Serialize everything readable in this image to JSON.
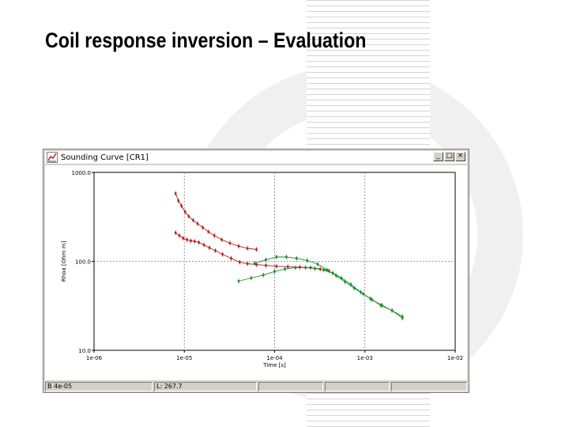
{
  "slide": {
    "title": "Coil response inversion – Evaluation"
  },
  "window": {
    "title": "Sounding Curve   [CR1]",
    "buttons": {
      "minimize": "_",
      "maximize": "□",
      "close": "×"
    }
  },
  "statusbar": {
    "left": "B  4e-05",
    "middle": "L: 267.7"
  },
  "colors": {
    "red_series": "#b02020",
    "green_series": "#1a8a2a",
    "grid": "#808080"
  },
  "chart_data": {
    "type": "scatter",
    "xscale": "log",
    "yscale": "log",
    "xlim": [
      1e-06,
      0.01
    ],
    "ylim": [
      10,
      1000
    ],
    "x_tick_labels": [
      "1e-06",
      "1e-05",
      "1e-04",
      "1e-03",
      "1e-02"
    ],
    "y_tick_labels": [
      "1000.0",
      "100.0",
      "10.0"
    ],
    "xlabel": "Time [s]",
    "ylabel": "Rhoa [Ohm m]",
    "grid": true,
    "series": [
      {
        "points": [
          [
            8e-06,
            580
          ],
          [
            8.6e-06,
            480
          ],
          [
            9.3e-06,
            420
          ],
          [
            1.02e-05,
            360
          ],
          [
            1.12e-05,
            320
          ],
          [
            1.25e-05,
            290
          ],
          [
            1.4e-05,
            265
          ],
          [
            1.6e-05,
            240
          ],
          [
            1.85e-05,
            215
          ],
          [
            2.15e-05,
            195
          ],
          [
            2.6e-05,
            175
          ],
          [
            3.2e-05,
            160
          ],
          [
            4e-05,
            148
          ],
          [
            5e-05,
            140
          ],
          [
            6.3e-05,
            136
          ]
        ],
        "color": "#b02020"
      },
      {
        "points": [
          [
            8e-06,
            210
          ],
          [
            8.8e-06,
            195
          ],
          [
            9.7e-06,
            182
          ],
          [
            1.07e-05,
            175
          ],
          [
            1.18e-05,
            170
          ],
          [
            1.3e-05,
            168
          ],
          [
            1.45e-05,
            163
          ],
          [
            1.65e-05,
            153
          ],
          [
            1.9e-05,
            142
          ],
          [
            2.2e-05,
            132
          ],
          [
            2.65e-05,
            120
          ],
          [
            3.3e-05,
            108
          ],
          [
            4.1e-05,
            98
          ],
          [
            5e-05,
            94
          ],
          [
            6.3e-05,
            92
          ],
          [
            8e-05,
            90
          ],
          [
            0.000105,
            88
          ],
          [
            0.00014,
            87
          ],
          [
            0.00019,
            86
          ],
          [
            0.00025,
            85
          ],
          [
            0.00032,
            82
          ],
          [
            0.0004,
            78
          ]
        ],
        "color": "#b02020"
      },
      {
        "points": [
          [
            4e-05,
            60
          ],
          [
            5.5e-05,
            65
          ],
          [
            7.5e-05,
            70
          ],
          [
            0.0001,
            77
          ],
          [
            0.00013,
            82
          ],
          [
            0.00017,
            85
          ],
          [
            0.00022,
            85
          ],
          [
            0.00028,
            83
          ],
          [
            0.00035,
            80
          ],
          [
            0.00044,
            74
          ],
          [
            0.00055,
            65
          ],
          [
            0.0007,
            55
          ],
          [
            0.0009,
            45
          ],
          [
            0.00115,
            38
          ],
          [
            0.0015,
            32
          ],
          [
            0.002,
            28
          ],
          [
            0.0026,
            24
          ]
        ],
        "color": "#1a8a2a"
      },
      {
        "points": [
          [
            6e-05,
            95
          ],
          [
            8e-05,
            104
          ],
          [
            0.000105,
            112
          ],
          [
            0.000135,
            112
          ],
          [
            0.000175,
            108
          ],
          [
            0.00023,
            102
          ],
          [
            0.0003,
            93
          ],
          [
            0.00038,
            80
          ],
          [
            0.00048,
            69
          ],
          [
            0.0006,
            59
          ],
          [
            0.00076,
            50
          ],
          [
            0.00096,
            43
          ],
          [
            0.0012,
            37
          ],
          [
            0.00155,
            32
          ],
          [
            0.002,
            28
          ],
          [
            0.0026,
            23
          ]
        ],
        "color": "#1a8a2a"
      }
    ]
  }
}
